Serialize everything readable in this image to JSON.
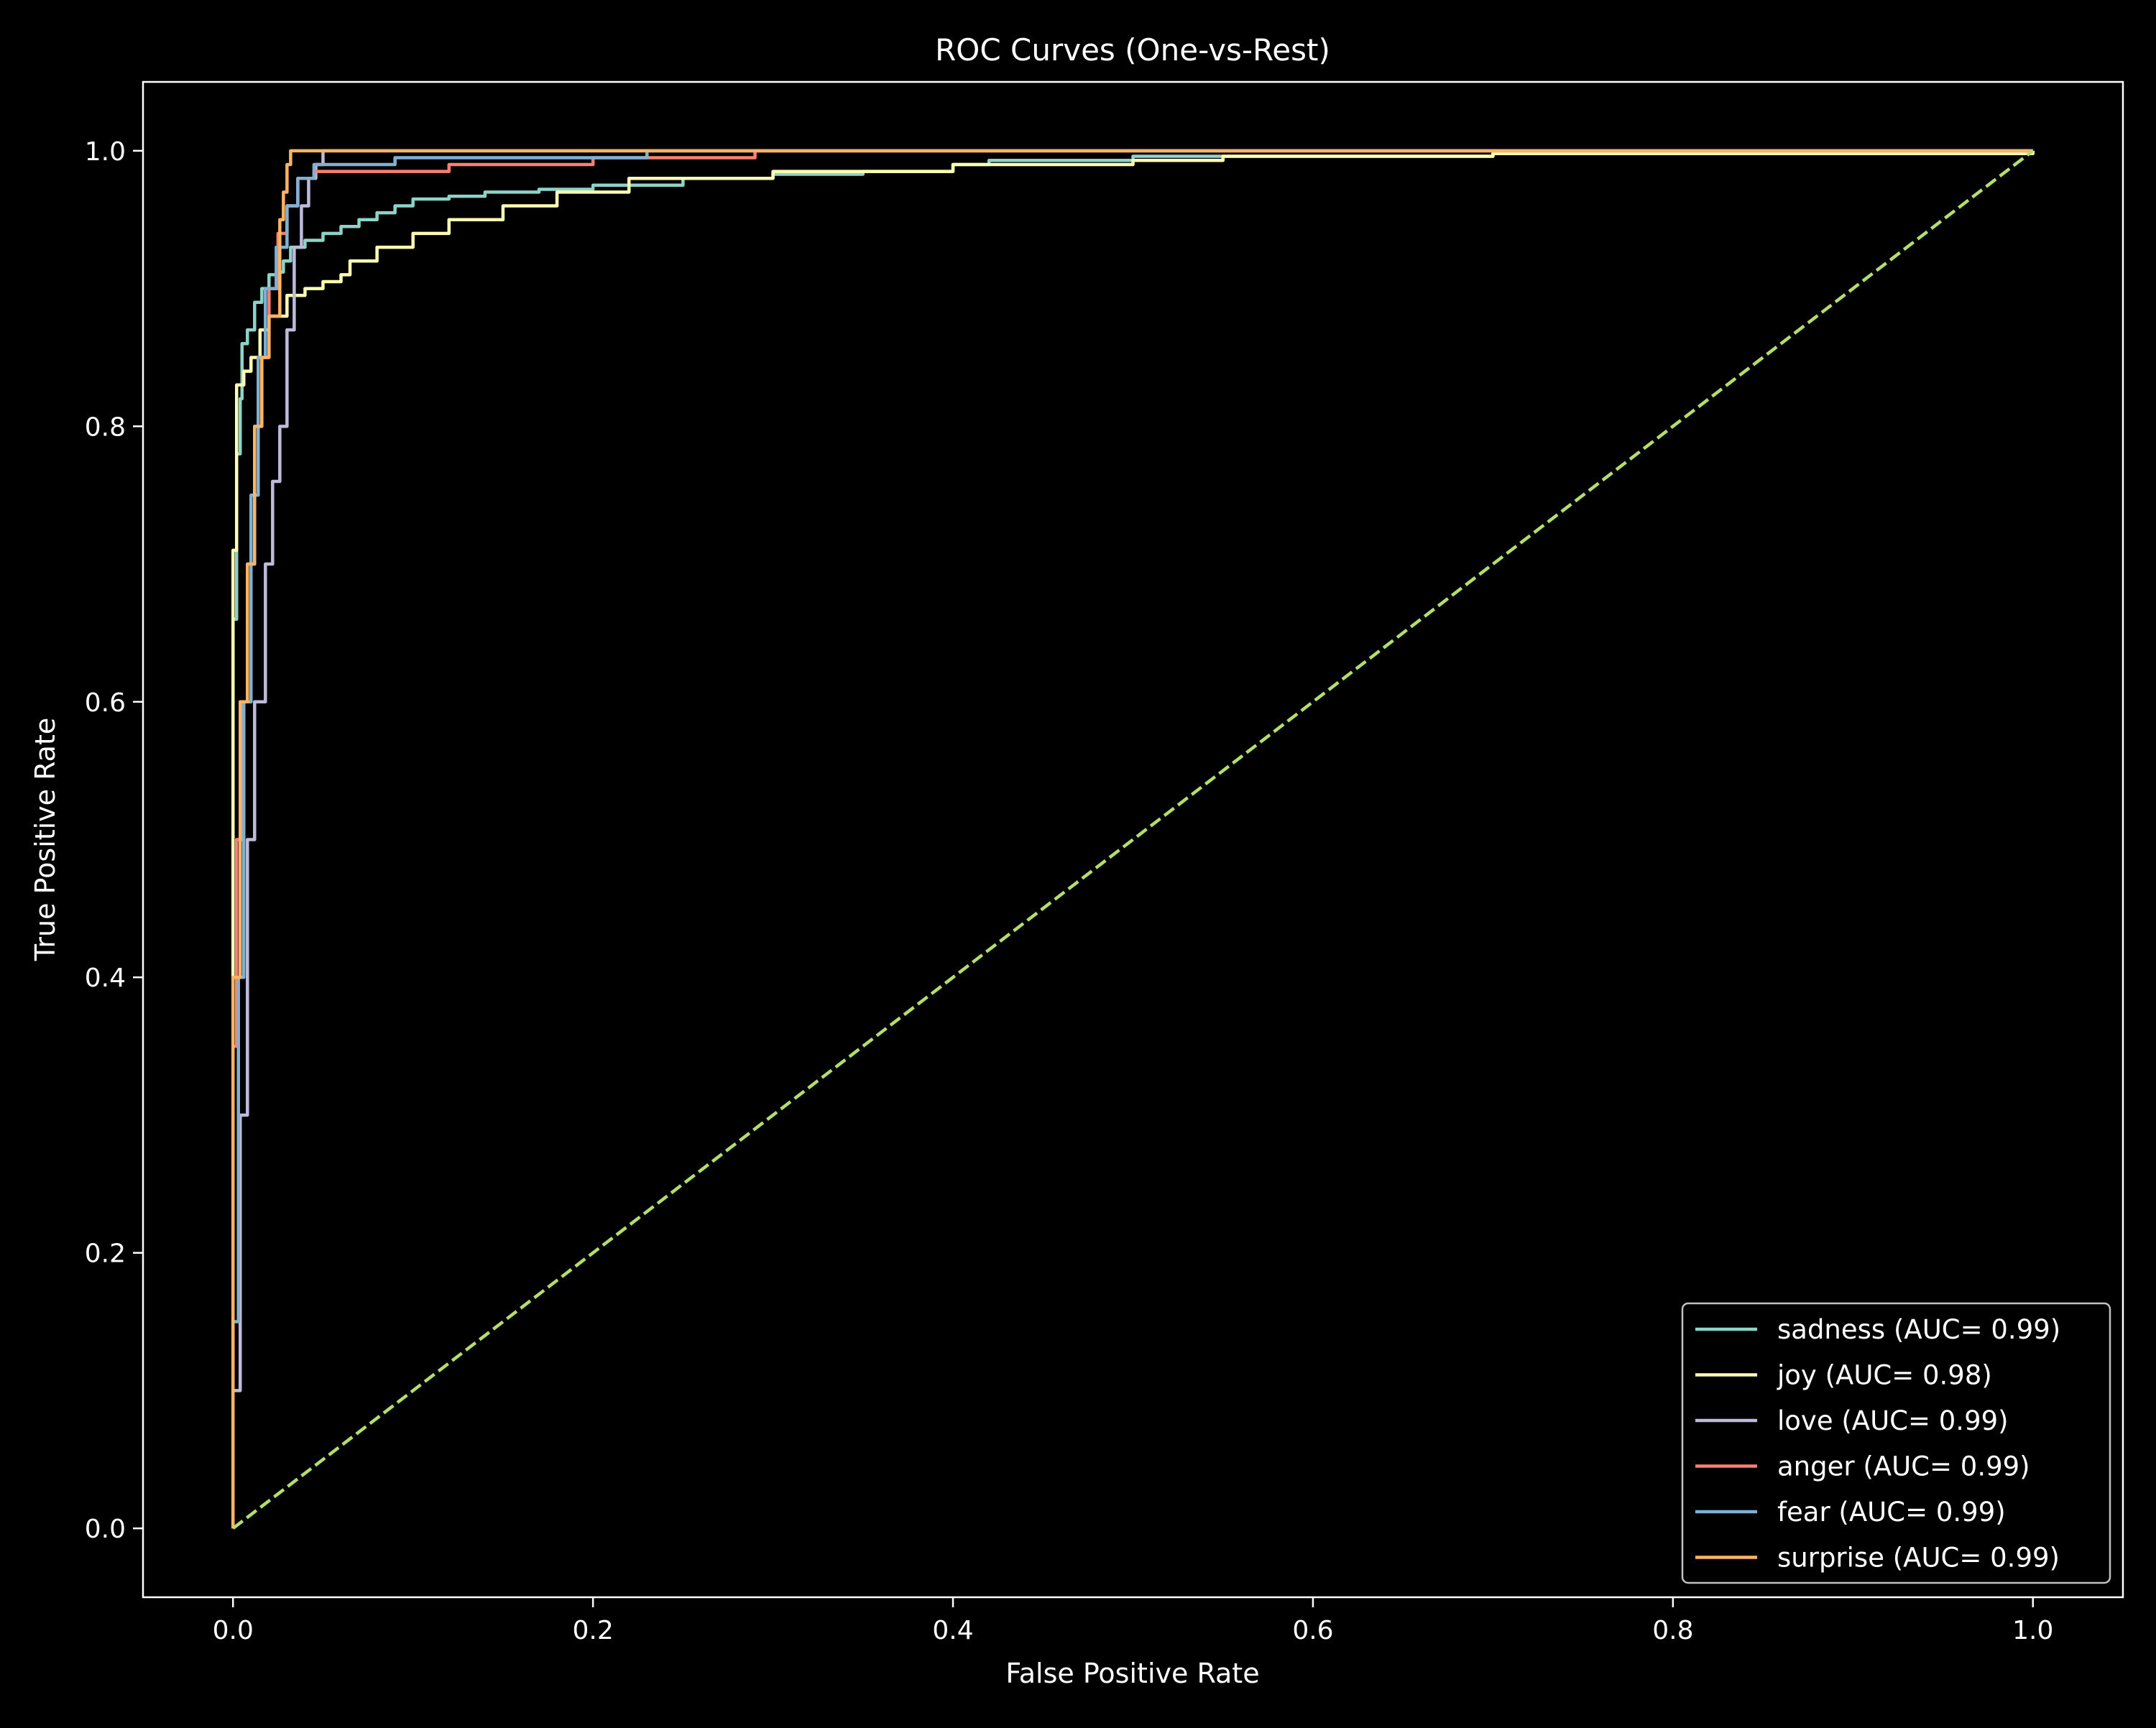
{
  "chart_data": {
    "type": "line",
    "title": "ROC Curves (One-vs-Rest)",
    "xlabel": "False Positive Rate",
    "ylabel": "True Positive Rate",
    "xlim": [
      -0.05,
      1.05
    ],
    "ylim": [
      -0.05,
      1.05
    ],
    "xticks": [
      0.0,
      0.2,
      0.4,
      0.6,
      0.8,
      1.0
    ],
    "yticks": [
      0.0,
      0.2,
      0.4,
      0.6,
      0.8,
      1.0
    ],
    "xtick_labels": [
      "0.0",
      "0.2",
      "0.4",
      "0.6",
      "0.8",
      "1.0"
    ],
    "ytick_labels": [
      "0.0",
      "0.2",
      "0.4",
      "0.6",
      "0.8",
      "1.0"
    ],
    "grid": false,
    "legend_position": "lower-right",
    "background": "#000000",
    "series": [
      {
        "name": "sadness (AUC= 0.99)",
        "color": "#8dd3c7",
        "points": [
          [
            0,
            0
          ],
          [
            0,
            0.66
          ],
          [
            0.002,
            0.78
          ],
          [
            0.004,
            0.82
          ],
          [
            0.005,
            0.86
          ],
          [
            0.008,
            0.87
          ],
          [
            0.012,
            0.89
          ],
          [
            0.016,
            0.9
          ],
          [
            0.02,
            0.91
          ],
          [
            0.026,
            0.912
          ],
          [
            0.028,
            0.92
          ],
          [
            0.032,
            0.93
          ],
          [
            0.04,
            0.935
          ],
          [
            0.05,
            0.94
          ],
          [
            0.06,
            0.945
          ],
          [
            0.07,
            0.95
          ],
          [
            0.08,
            0.955
          ],
          [
            0.09,
            0.96
          ],
          [
            0.1,
            0.965
          ],
          [
            0.12,
            0.967
          ],
          [
            0.14,
            0.97
          ],
          [
            0.17,
            0.972
          ],
          [
            0.2,
            0.975
          ],
          [
            0.25,
            0.98
          ],
          [
            0.3,
            0.983
          ],
          [
            0.35,
            0.985
          ],
          [
            0.4,
            0.99
          ],
          [
            0.42,
            0.993
          ],
          [
            0.5,
            0.996
          ],
          [
            0.7,
            0.999
          ],
          [
            1,
            1
          ]
        ]
      },
      {
        "name": "joy (AUC= 0.98)",
        "color": "#ffffb3",
        "points": [
          [
            0,
            0
          ],
          [
            0,
            0.71
          ],
          [
            0.002,
            0.83
          ],
          [
            0.006,
            0.84
          ],
          [
            0.01,
            0.85
          ],
          [
            0.015,
            0.87
          ],
          [
            0.02,
            0.88
          ],
          [
            0.03,
            0.895
          ],
          [
            0.04,
            0.9
          ],
          [
            0.05,
            0.905
          ],
          [
            0.06,
            0.91
          ],
          [
            0.065,
            0.92
          ],
          [
            0.08,
            0.93
          ],
          [
            0.1,
            0.94
          ],
          [
            0.12,
            0.95
          ],
          [
            0.15,
            0.96
          ],
          [
            0.18,
            0.97
          ],
          [
            0.22,
            0.98
          ],
          [
            0.3,
            0.985
          ],
          [
            0.4,
            0.99
          ],
          [
            0.5,
            0.993
          ],
          [
            0.55,
            0.996
          ],
          [
            0.7,
            0.998
          ],
          [
            1,
            1
          ]
        ]
      },
      {
        "name": "love (AUC= 0.99)",
        "color": "#bebada",
        "points": [
          [
            0,
            0
          ],
          [
            0,
            0.1
          ],
          [
            0.004,
            0.3
          ],
          [
            0.008,
            0.5
          ],
          [
            0.012,
            0.6
          ],
          [
            0.018,
            0.7
          ],
          [
            0.022,
            0.76
          ],
          [
            0.026,
            0.8
          ],
          [
            0.03,
            0.87
          ],
          [
            0.034,
            0.93
          ],
          [
            0.038,
            0.96
          ],
          [
            0.042,
            0.98
          ],
          [
            0.046,
            0.99
          ],
          [
            0.05,
            1.0
          ],
          [
            1,
            1
          ]
        ]
      },
      {
        "name": "anger (AUC= 0.99)",
        "color": "#fb8072",
        "points": [
          [
            0,
            0
          ],
          [
            0,
            0.35
          ],
          [
            0.002,
            0.5
          ],
          [
            0.005,
            0.6
          ],
          [
            0.008,
            0.7
          ],
          [
            0.012,
            0.8
          ],
          [
            0.016,
            0.85
          ],
          [
            0.02,
            0.9
          ],
          [
            0.025,
            0.94
          ],
          [
            0.03,
            0.96
          ],
          [
            0.036,
            0.98
          ],
          [
            0.045,
            0.985
          ],
          [
            0.12,
            0.99
          ],
          [
            0.2,
            0.995
          ],
          [
            0.29,
            0.998
          ],
          [
            0.29,
            1.0
          ],
          [
            1,
            1
          ]
        ]
      },
      {
        "name": "fear (AUC= 0.99)",
        "color": "#80b1d3",
        "points": [
          [
            0,
            0
          ],
          [
            0,
            0.15
          ],
          [
            0.003,
            0.4
          ],
          [
            0.006,
            0.6
          ],
          [
            0.01,
            0.75
          ],
          [
            0.014,
            0.85
          ],
          [
            0.018,
            0.9
          ],
          [
            0.024,
            0.93
          ],
          [
            0.03,
            0.96
          ],
          [
            0.036,
            0.98
          ],
          [
            0.045,
            0.99
          ],
          [
            0.09,
            0.995
          ],
          [
            0.23,
            0.998
          ],
          [
            0.23,
            1.0
          ],
          [
            1,
            1
          ]
        ]
      },
      {
        "name": "surprise (AUC= 0.99)",
        "color": "#fdb462",
        "points": [
          [
            0,
            0
          ],
          [
            0,
            0.4
          ],
          [
            0.004,
            0.6
          ],
          [
            0.008,
            0.7
          ],
          [
            0.012,
            0.8
          ],
          [
            0.016,
            0.85
          ],
          [
            0.02,
            0.88
          ],
          [
            0.026,
            0.95
          ],
          [
            0.028,
            0.97
          ],
          [
            0.03,
            0.99
          ],
          [
            0.032,
            1.0
          ],
          [
            1,
            1
          ]
        ]
      }
    ],
    "reference_line": {
      "style": "dashed",
      "color": "#b3de69",
      "points": [
        [
          0,
          0
        ],
        [
          1,
          1
        ]
      ]
    }
  }
}
